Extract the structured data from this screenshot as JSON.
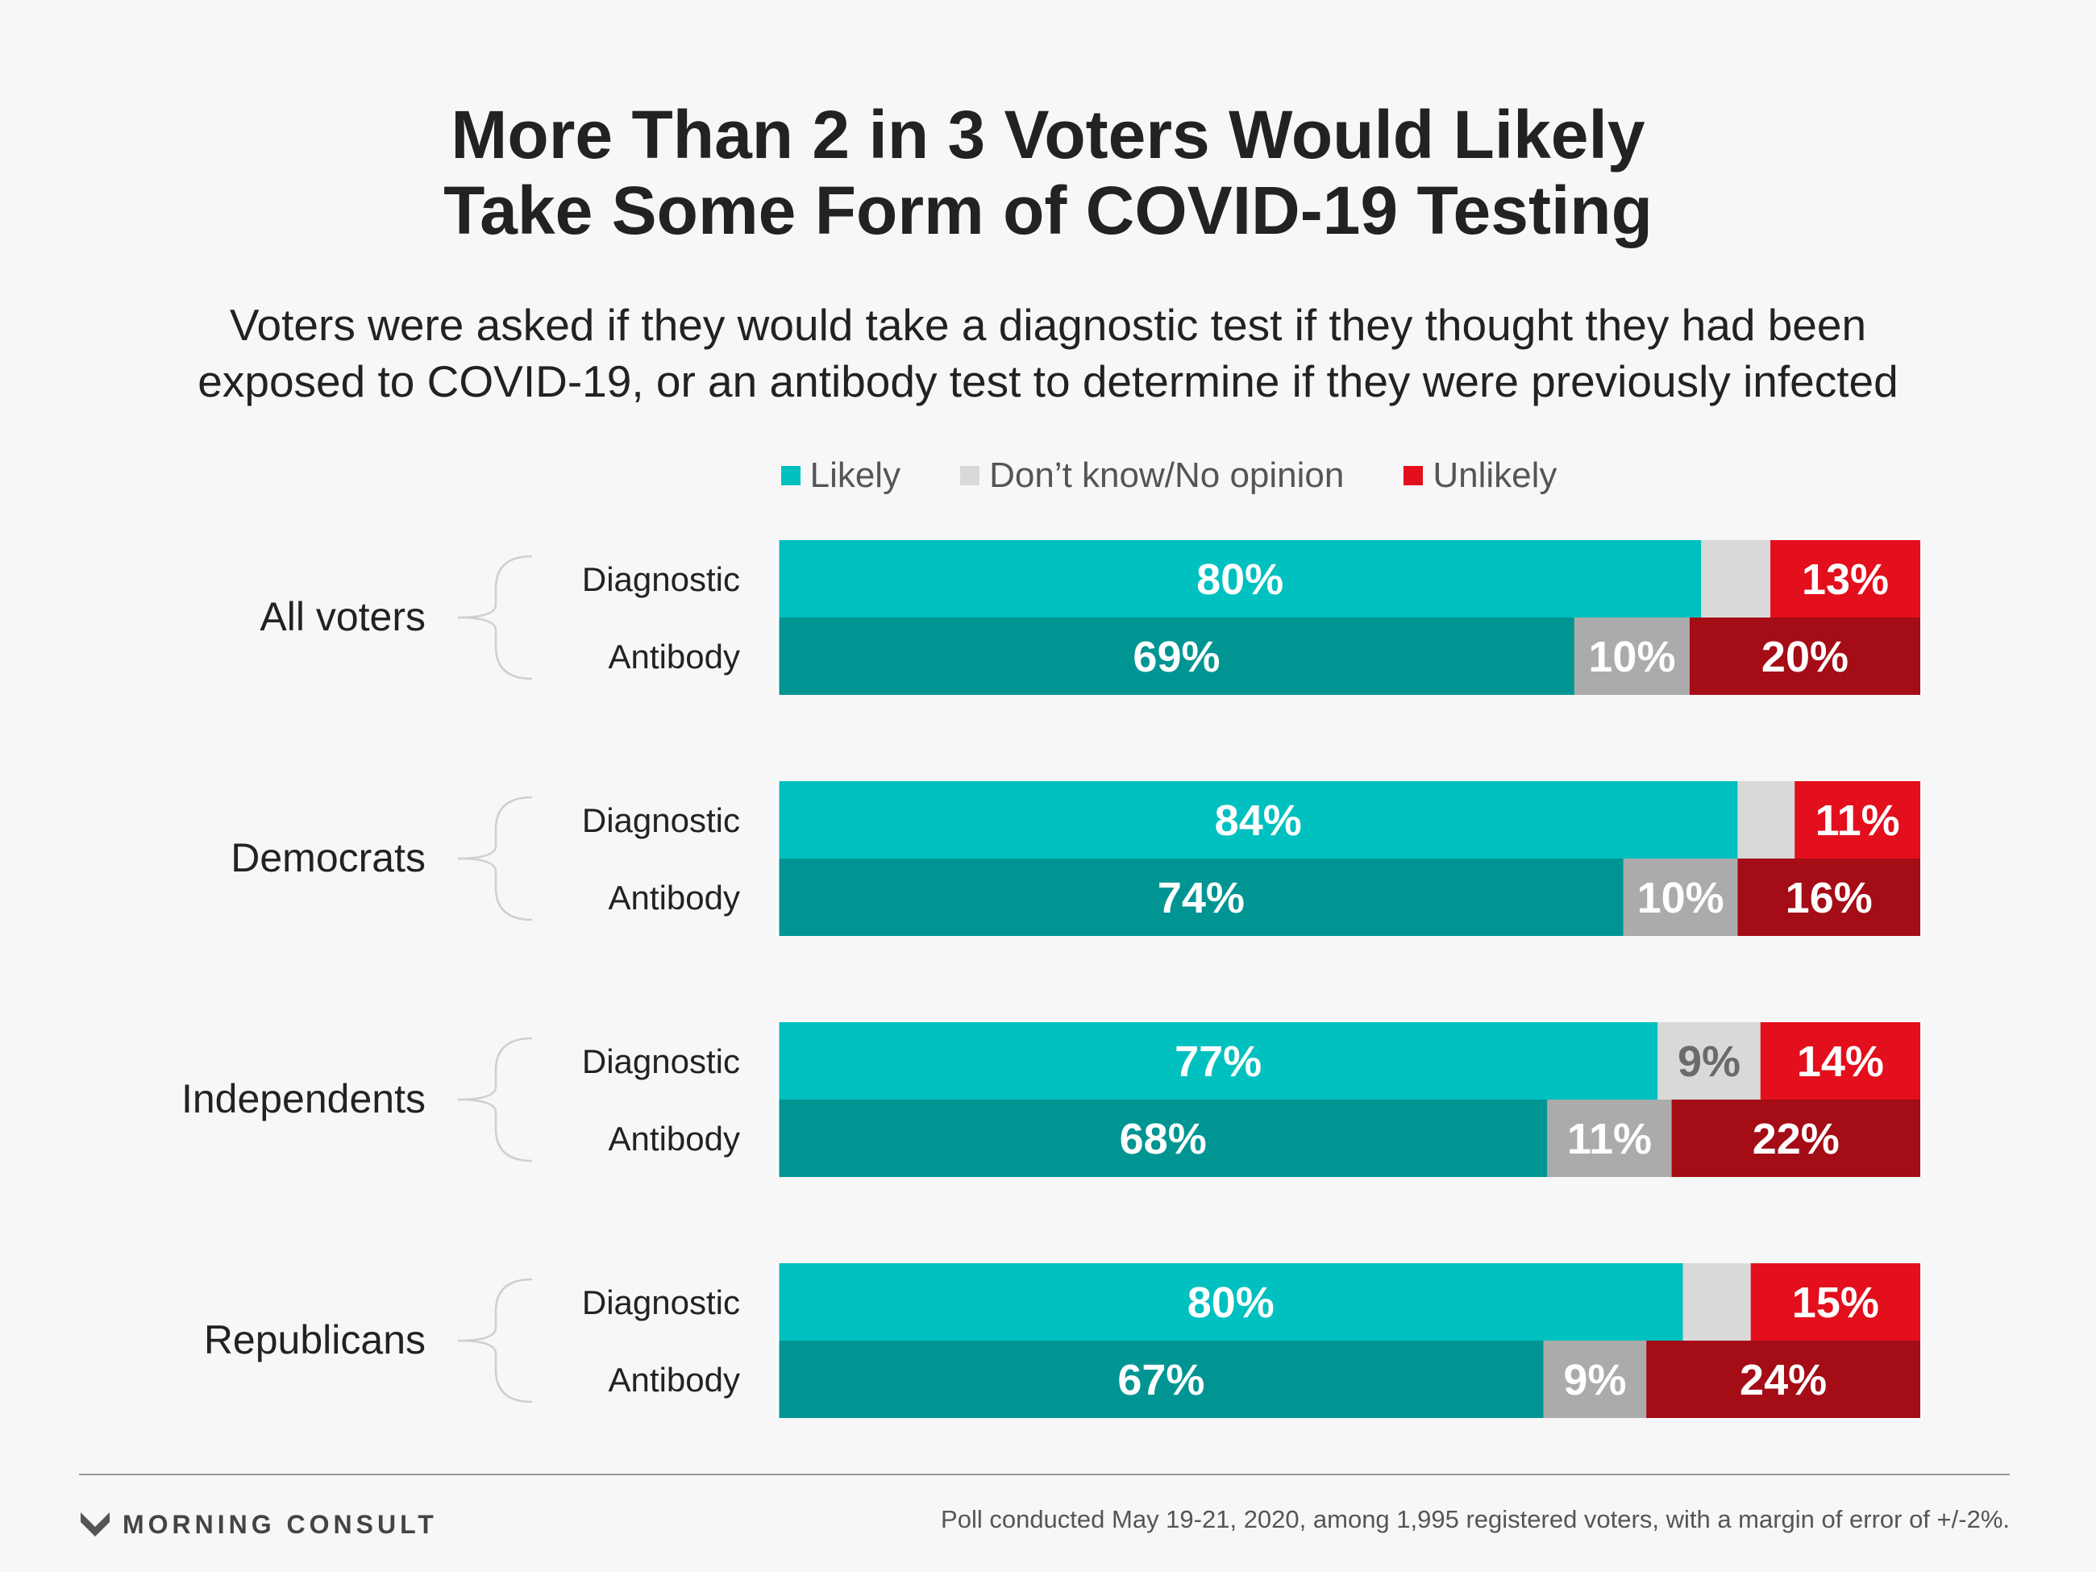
{
  "chart_data": {
    "type": "bar",
    "orientation": "horizontal",
    "stacked": true,
    "title": "More Than 2 in 3 Voters Would Likely Take Some Form of COVID-19 Testing",
    "title_lines": [
      "More Than 2 in 3 Voters Would Likely",
      "Take Some Form of COVID-19 Testing"
    ],
    "subtitle_lines": [
      "Voters were asked if they would take a diagnostic test if they thought they had been",
      "exposed to COVID-19, or an antibody test to determine if they were previously infected"
    ],
    "legend": [
      {
        "label": "Likely",
        "color": "#00c0c0"
      },
      {
        "label": "Don’t know/No opinion",
        "color": "#d9d9d9"
      },
      {
        "label": "Unlikely",
        "color": "#e30f1c"
      }
    ],
    "legend_position": "top",
    "xlim": [
      0,
      100
    ],
    "colors": {
      "diagnostic": [
        "#00c0c0",
        "#d9d9d9",
        "#e30f1c"
      ],
      "antibody": [
        "#009593",
        "#ababab",
        "#a40c16"
      ],
      "label_on_dark": "#ffffff",
      "label_on_gray": "#6b6b6b"
    },
    "groups": [
      {
        "name": "All voters",
        "bars": [
          {
            "label": "Diagnostic",
            "values": [
              80,
              6,
              13
            ],
            "value_labels": [
              "80%",
              "",
              "13%"
            ]
          },
          {
            "label": "Antibody",
            "values": [
              69,
              10,
              20
            ],
            "value_labels": [
              "69%",
              "10%",
              "20%"
            ]
          }
        ]
      },
      {
        "name": "Democrats",
        "bars": [
          {
            "label": "Diagnostic",
            "values": [
              84,
              5,
              11
            ],
            "value_labels": [
              "84%",
              "",
              "11%"
            ]
          },
          {
            "label": "Antibody",
            "values": [
              74,
              10,
              16
            ],
            "value_labels": [
              "74%",
              "10%",
              "16%"
            ]
          }
        ]
      },
      {
        "name": "Independents",
        "bars": [
          {
            "label": "Diagnostic",
            "values": [
              77,
              9,
              14
            ],
            "value_labels": [
              "77%",
              "9%",
              "14%"
            ]
          },
          {
            "label": "Antibody",
            "values": [
              68,
              11,
              22
            ],
            "value_labels": [
              "68%",
              "11%",
              "22%"
            ]
          }
        ]
      },
      {
        "name": "Republicans",
        "bars": [
          {
            "label": "Diagnostic",
            "values": [
              80,
              6,
              15
            ],
            "value_labels": [
              "80%",
              "",
              "15%"
            ]
          },
          {
            "label": "Antibody",
            "values": [
              67,
              9,
              24
            ],
            "value_labels": [
              "67%",
              "9%",
              "24%"
            ]
          }
        ]
      }
    ]
  },
  "footer": {
    "brand": "MORNING CONSULT",
    "note": "Poll conducted May 19-21, 2020, among 1,995 registered voters, with a margin of error of +/-2%."
  }
}
